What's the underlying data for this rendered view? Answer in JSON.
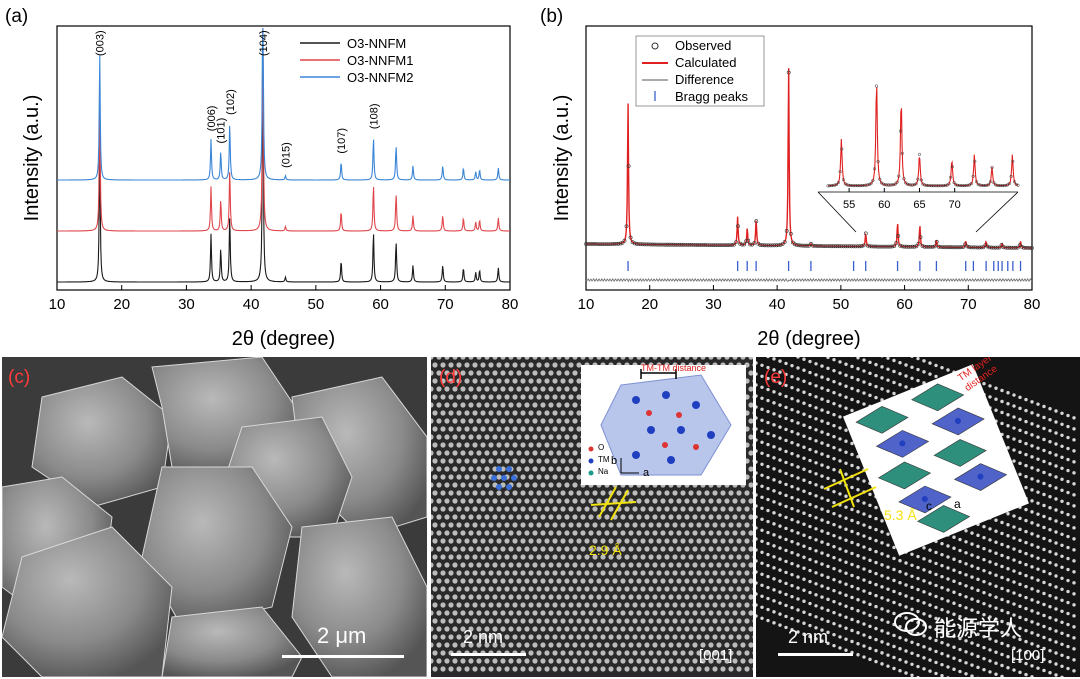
{
  "figure": {
    "watermark": "能源学人",
    "panels": {
      "a": {
        "label": "(a)",
        "xlabel": "2θ (degree)",
        "ylabel": "Intensity (a.u.)",
        "legend": [
          "O3-NNFM",
          "O3-NNFM1",
          "O3-NNFM2"
        ],
        "colors": {
          "O3-NNFM": "#1a1a1a",
          "O3-NNFM1": "#e0474c",
          "O3-NNFM2": "#3a86d6"
        },
        "peak_labels": [
          {
            "text": "(003)",
            "x": 16.6
          },
          {
            "text": "(006)",
            "x": 33.8
          },
          {
            "text": "(101)",
            "x": 35.3
          },
          {
            "text": "(102)",
            "x": 36.7
          },
          {
            "text": "(104)",
            "x": 41.8
          },
          {
            "text": "(015)",
            "x": 45.3
          },
          {
            "text": "(107)",
            "x": 53.9
          },
          {
            "text": "(108)",
            "x": 58.9
          }
        ]
      },
      "b": {
        "label": "(b)",
        "xlabel": "2θ (degree)",
        "ylabel": "Intensity (a.u.)",
        "legend": [
          "Observed",
          "Calculated",
          "Difference",
          "Bragg peaks"
        ],
        "inset_ticks": [
          "55",
          "60",
          "65",
          "70"
        ]
      },
      "c": {
        "label": "(c)",
        "scale": "2 μm"
      },
      "d": {
        "label": "(d)",
        "scale": "2 nm",
        "zone": "[001]",
        "spacing": "2.9 Å",
        "inset_title": "TM-TM distance",
        "inset_legend": [
          "O",
          "TM",
          "Na"
        ],
        "axes": [
          "b",
          "a"
        ]
      },
      "e": {
        "label": "(e)",
        "scale": "2 nm",
        "zone": "[100]",
        "spacing": "5.3 Å",
        "inset_title": "TM layer interslab distance",
        "axes": [
          "c",
          "a"
        ]
      }
    }
  },
  "chart_data": [
    {
      "type": "line",
      "title": "",
      "xlabel": "2θ (degree)",
      "ylabel": "Intensity (a.u.)",
      "xlim": [
        10,
        80
      ],
      "xticks": [
        10,
        20,
        30,
        40,
        50,
        60,
        70,
        80
      ],
      "legend_position": "top-right",
      "peaks": [
        {
          "x": 16.6,
          "h": 0.62
        },
        {
          "x": 33.8,
          "h": 0.2
        },
        {
          "x": 35.3,
          "h": 0.14
        },
        {
          "x": 36.7,
          "h": 0.28
        },
        {
          "x": 41.8,
          "h": 1.0
        },
        {
          "x": 45.3,
          "h": 0.02
        },
        {
          "x": 53.9,
          "h": 0.09
        },
        {
          "x": 58.9,
          "h": 0.21
        },
        {
          "x": 62.4,
          "h": 0.17
        },
        {
          "x": 65.0,
          "h": 0.07
        },
        {
          "x": 69.6,
          "h": 0.07
        },
        {
          "x": 72.8,
          "h": 0.06
        },
        {
          "x": 74.7,
          "h": 0.04
        },
        {
          "x": 75.3,
          "h": 0.05
        },
        {
          "x": 78.2,
          "h": 0.06
        }
      ],
      "series": [
        {
          "name": "O3-NNFM",
          "offset": 0.0
        },
        {
          "name": "O3-NNFM1",
          "offset": 0.25
        },
        {
          "name": "O3-NNFM2",
          "offset": 0.5
        }
      ]
    },
    {
      "type": "line",
      "title": "",
      "xlabel": "2θ (degree)",
      "ylabel": "Intensity (a.u.)",
      "xlim": [
        10,
        80
      ],
      "xticks": [
        10,
        20,
        30,
        40,
        50,
        60,
        70,
        80
      ],
      "legend_position": "top-left",
      "peaks": [
        {
          "x": 16.6,
          "h": 0.65
        },
        {
          "x": 33.8,
          "h": 0.13
        },
        {
          "x": 35.3,
          "h": 0.08
        },
        {
          "x": 36.7,
          "h": 0.12
        },
        {
          "x": 41.8,
          "h": 0.82
        },
        {
          "x": 45.3,
          "h": 0.01
        },
        {
          "x": 53.9,
          "h": 0.06
        },
        {
          "x": 58.9,
          "h": 0.11
        },
        {
          "x": 62.4,
          "h": 0.1
        },
        {
          "x": 65.0,
          "h": 0.03
        },
        {
          "x": 69.6,
          "h": 0.03
        },
        {
          "x": 72.8,
          "h": 0.03
        },
        {
          "x": 75.3,
          "h": 0.02
        },
        {
          "x": 78.2,
          "h": 0.03
        }
      ],
      "bragg_positions": [
        16.6,
        33.8,
        35.3,
        36.7,
        41.8,
        45.3,
        52.0,
        53.9,
        58.9,
        62.4,
        65.0,
        69.6,
        70.8,
        72.8,
        74.0,
        74.7,
        75.3,
        76.2,
        77.0,
        78.2
      ]
    }
  ]
}
